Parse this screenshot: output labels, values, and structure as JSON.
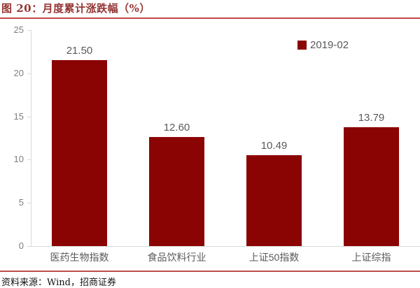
{
  "header": {
    "title": "图 20：月度累计涨跌幅（%）"
  },
  "footer": {
    "source": "资料来源：Wind，招商证券"
  },
  "colors": {
    "bar": "#8B0404",
    "title": "#943634",
    "rule": "#BE4B48",
    "axis": "#D9D9D9",
    "label": "#595959"
  },
  "chart_data": {
    "type": "bar",
    "title": "图 20：月度累计涨跌幅（%）",
    "categories": [
      "医药生物指数",
      "食品饮料行业",
      "上证50指数",
      "上证综指"
    ],
    "series": [
      {
        "name": "2019-02",
        "values": [
          21.5,
          12.6,
          10.49,
          13.79
        ]
      }
    ],
    "data_labels": [
      "21.50",
      "12.60",
      "10.49",
      "13.79"
    ],
    "xlabel": "",
    "ylabel": "",
    "ylim": [
      0,
      25
    ],
    "yticks": [
      0,
      5,
      10,
      15,
      20,
      25
    ],
    "grid": false,
    "legend_position": "top-right",
    "source": "资料来源：Wind，招商证券"
  }
}
